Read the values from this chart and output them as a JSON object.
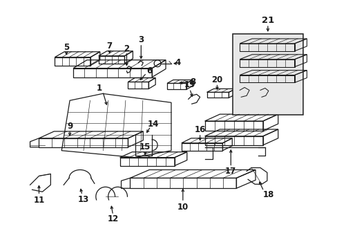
{
  "background_color": "#ffffff",
  "fig_width": 4.89,
  "fig_height": 3.6,
  "dpi": 100,
  "line_color": "#1a1a1a",
  "label_color": "#1a1a1a",
  "label_fontsize": 8.5,
  "line_width": 0.9
}
